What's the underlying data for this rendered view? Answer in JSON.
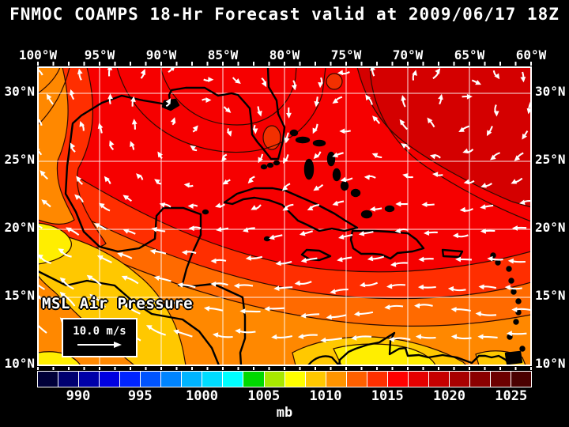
{
  "title": "FNMOC COAMPS 18-Hr Forecast valid at 2009/06/17 18Z",
  "map": {
    "field_label": "MSL Air Pressure",
    "wind_scale": {
      "label": "10.0 m/s"
    },
    "top_axis_labels": [
      "100°W",
      "95°W",
      "90°W",
      "85°W",
      "80°W",
      "75°W",
      "70°W",
      "65°W",
      "60°W"
    ],
    "left_axis_labels": [
      "30°N",
      "25°N",
      "20°N",
      "15°N",
      "10°N"
    ],
    "right_axis_labels": [
      "30°N",
      "25°N",
      "20°N",
      "15°N",
      "10°N"
    ],
    "gridline_color": "#ffffff",
    "coastline_color": "#000000",
    "arrow_color": "#ffffff",
    "contour_color": "#2e0a00",
    "fill_colors": {
      "dark_red": "#d40000",
      "red": "#f60000",
      "red_orange": "#ff2e00",
      "orange_red": "#ff6a00",
      "orange": "#ff8800",
      "gold": "#ffc800",
      "yellow": "#ffee00",
      "blob": "#f23000"
    }
  },
  "colorbar": {
    "unit": "mb",
    "tick_labels": [
      "990",
      "995",
      "1000",
      "1005",
      "1010",
      "1015",
      "1020",
      "1025"
    ],
    "segment_colors": [
      "#000038",
      "#000070",
      "#0000a8",
      "#0000e0",
      "#0024ff",
      "#0054ff",
      "#0084ff",
      "#00b4ff",
      "#00dcff",
      "#00ffff",
      "#00d800",
      "#a8e800",
      "#ffff00",
      "#ffc800",
      "#ff9400",
      "#ff6000",
      "#ff3000",
      "#ff0000",
      "#e40000",
      "#c60000",
      "#a80000",
      "#8a0000",
      "#6c0000",
      "#4a0000"
    ]
  },
  "chart_data": {
    "type": "heatmap",
    "title": "FNMOC COAMPS 18-Hr Forecast valid at 2009/06/17 18Z",
    "variable": "MSL Air Pressure",
    "unit": "mb",
    "colorbar_ticks": [
      990,
      995,
      1000,
      1005,
      1010,
      1015,
      1020,
      1025
    ],
    "lon_ticks_deg_w": [
      100,
      95,
      90,
      85,
      80,
      75,
      70,
      65,
      60
    ],
    "lat_ticks_deg_n": [
      30,
      25,
      20,
      15,
      10
    ],
    "wind_reference_vector": "10.0 m/s",
    "field_summary": "Pressure ~1006-1012 mb (yellow/orange) over Central America and SW Caribbean, increasing northeastward to ~1016-1020 mb (dark red) over the western Atlantic; easterly trade-wind arrows in the south and an anticyclonic gyre over the Gulf of Mexico."
  }
}
